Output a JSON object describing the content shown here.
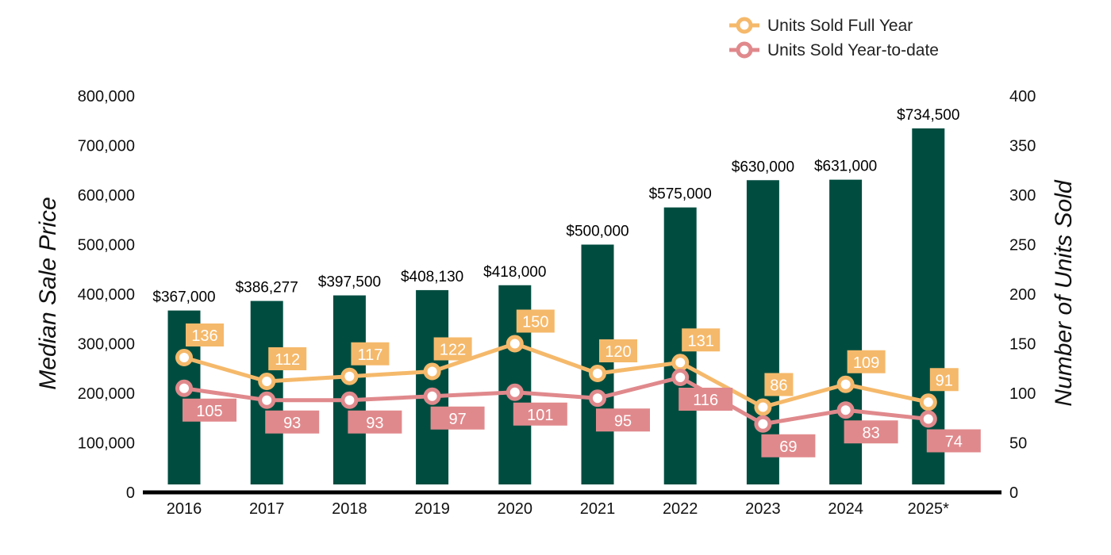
{
  "chart_data": {
    "type": "bar",
    "categories": [
      "2016",
      "2017",
      "2018",
      "2019",
      "2020",
      "2021",
      "2022",
      "2023",
      "2024",
      "2025*"
    ],
    "bars": {
      "values": [
        367000,
        386277,
        397500,
        408130,
        418000,
        500000,
        575000,
        630000,
        631000,
        734500
      ],
      "labels": [
        "$367,000",
        "$386,277",
        "$397,500",
        "$408,130",
        "$418,000",
        "$500,000",
        "$575,000",
        "$630,000",
        "$631,000",
        "$734,500"
      ],
      "color": "#004d40"
    },
    "series": [
      {
        "name": "Units Sold Full Year",
        "type": "line",
        "axis": "right",
        "values": [
          136,
          112,
          117,
          122,
          150,
          120,
          131,
          86,
          109,
          91
        ],
        "color": "#f5b96b",
        "label_position": "above"
      },
      {
        "name": "Units Sold Year-to-date",
        "type": "line",
        "axis": "right",
        "values": [
          105,
          93,
          93,
          97,
          101,
          95,
          116,
          69,
          83,
          74
        ],
        "color": "#e0898c",
        "label_position": "below"
      }
    ],
    "y_left": {
      "label": "Median Sale Price",
      "range": [
        0,
        800000
      ],
      "ticks": [
        "0",
        "100,000",
        "200,000",
        "300,000",
        "400,000",
        "500,000",
        "600,000",
        "700,000",
        "800,000"
      ]
    },
    "y_right": {
      "label": "Number of Units Sold",
      "range": [
        0,
        400
      ],
      "ticks": [
        "0",
        "50",
        "100",
        "150",
        "200",
        "250",
        "300",
        "350",
        "400"
      ]
    },
    "grid": false,
    "legend": "top-right",
    "title": ""
  }
}
